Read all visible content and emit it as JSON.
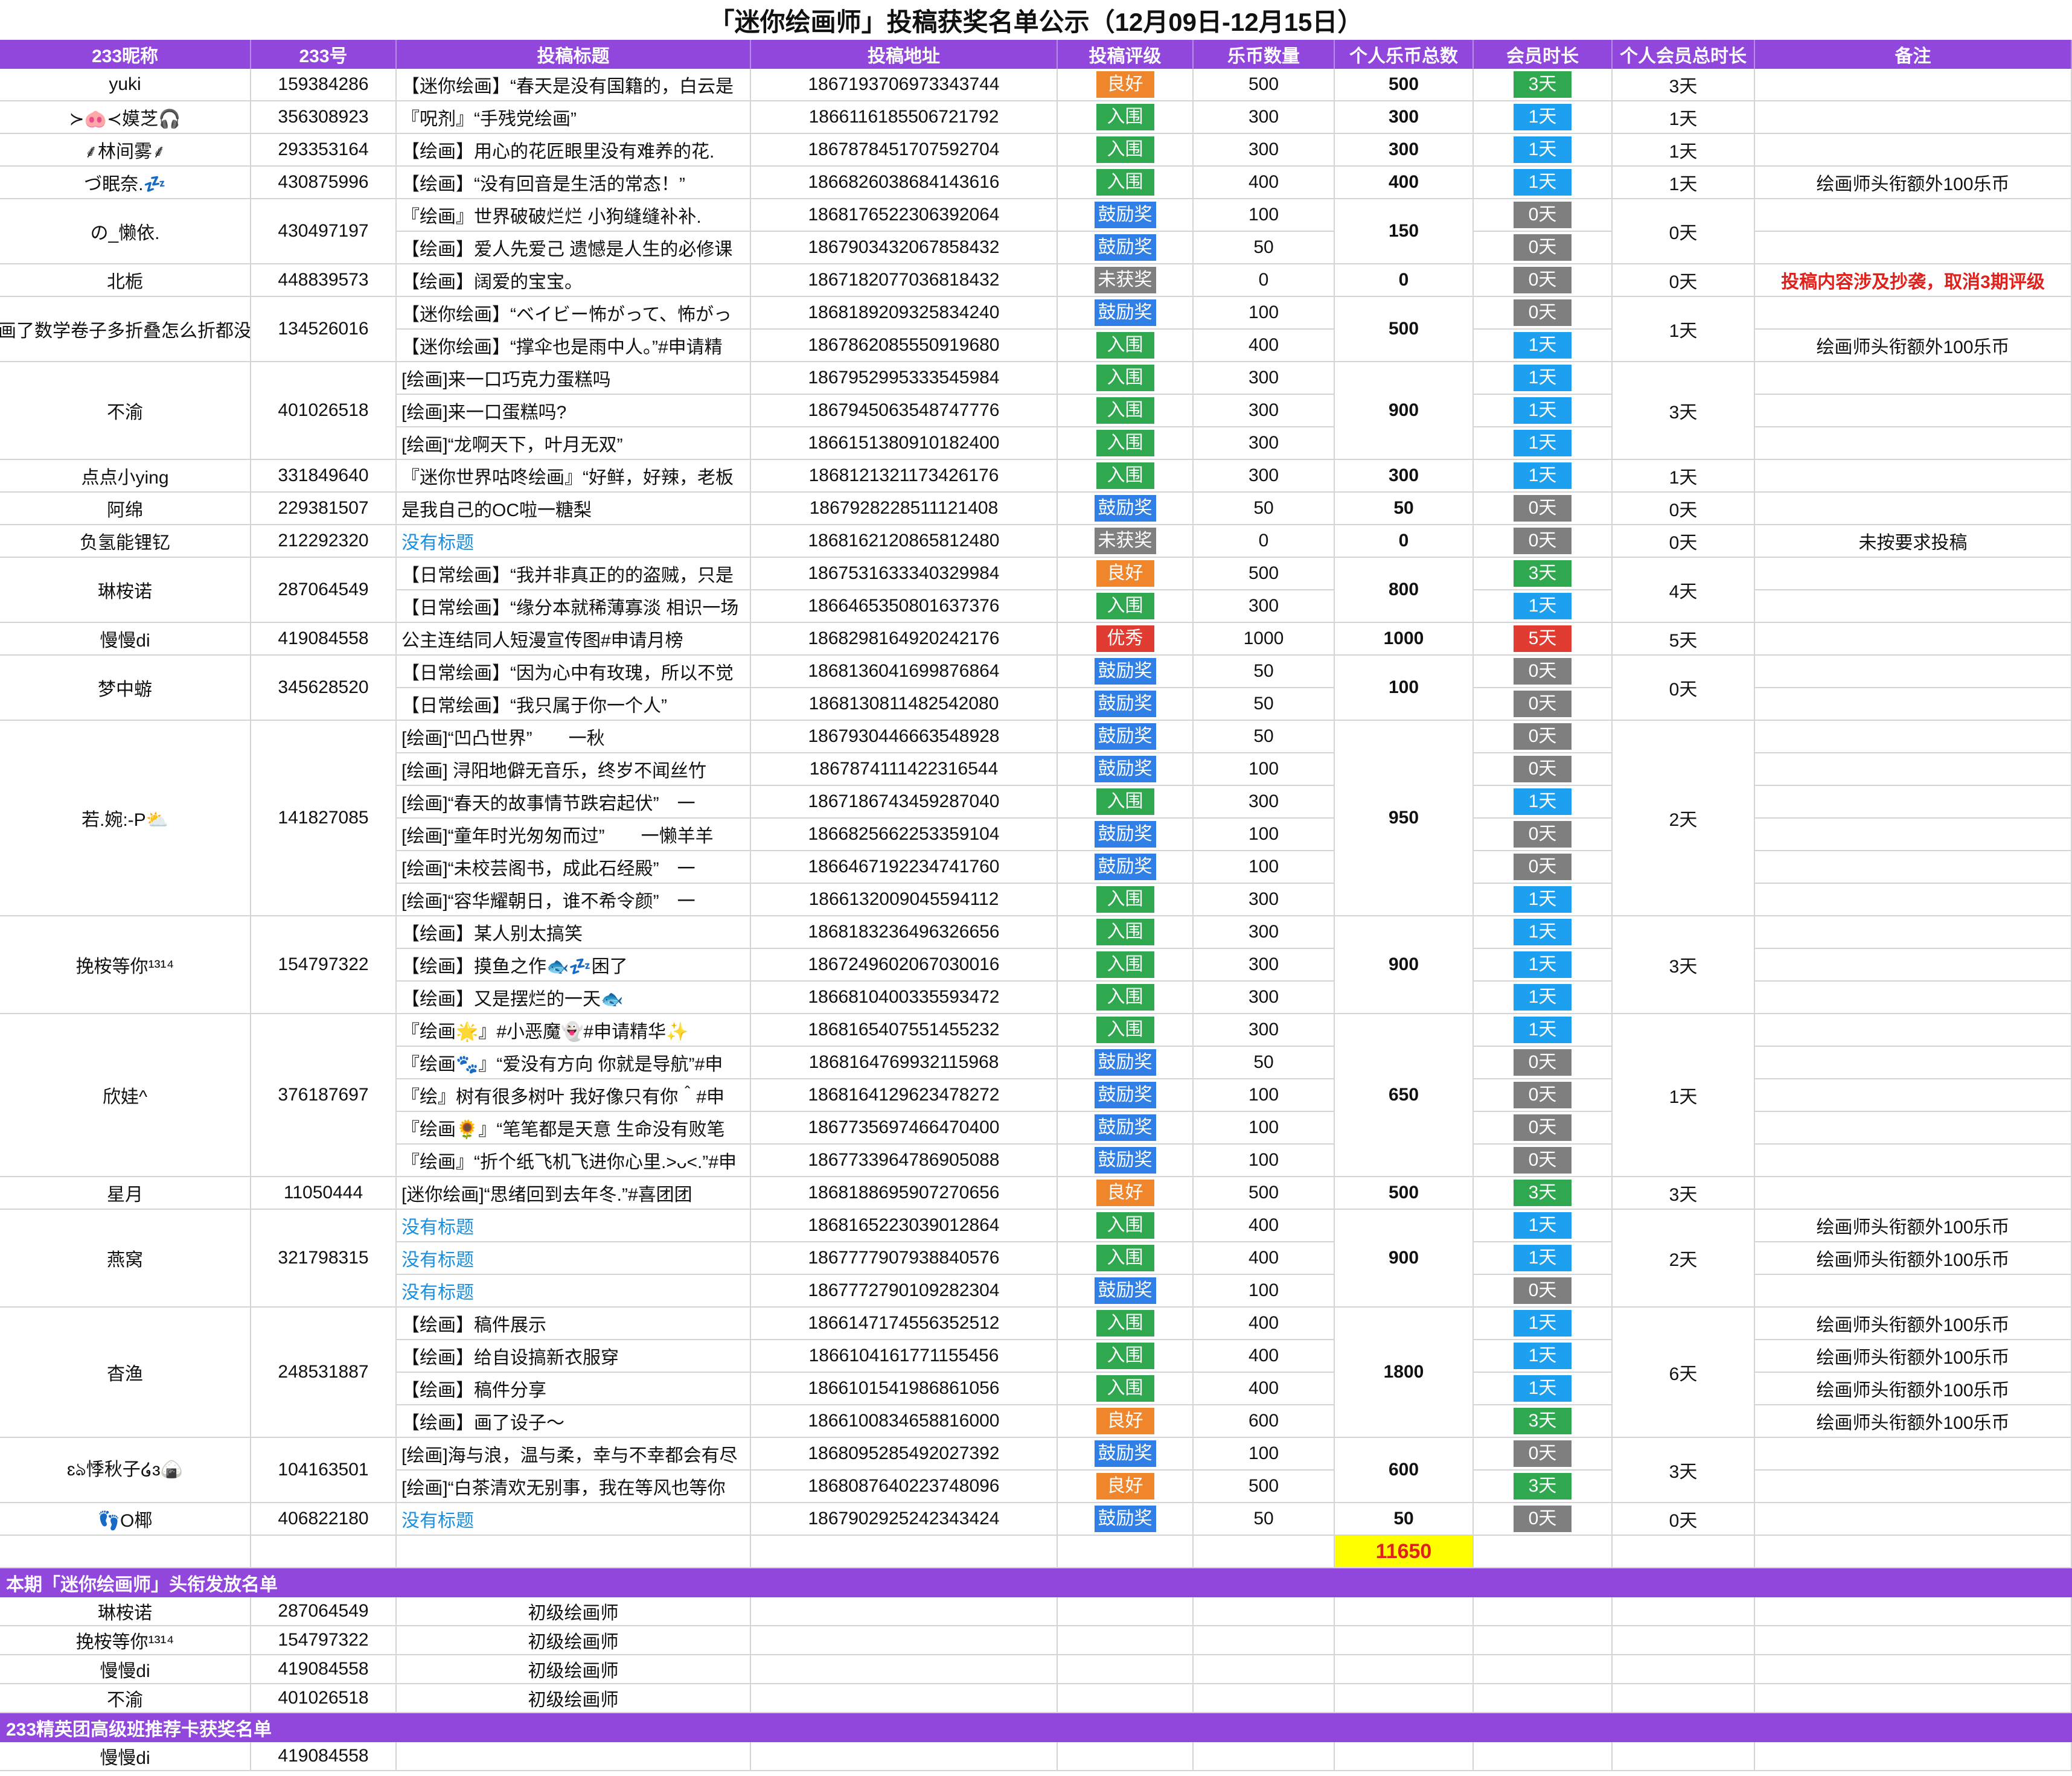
{
  "title": "「迷你绘画师」投稿获奖名单公示（12月09日-12月15日）",
  "headers": [
    "233昵称",
    "233号",
    "投稿标题",
    "投稿地址",
    "投稿评级",
    "乐币数量",
    "个人乐币总数",
    "会员时长",
    "个人会员总时长",
    "备注"
  ],
  "badge_colors": {
    "良好": "#f0862c",
    "入围": "#2fa84f",
    "鼓励奖": "#2f7fe6",
    "未获奖": "#808080",
    "优秀": "#e03c31",
    "3天": "#2fa84f",
    "1天": "#1ea0f0",
    "0天": "#7f7f7f",
    "5天": "#e03c31"
  },
  "groups": [
    {
      "nickname": "yuki",
      "uid": "159384286",
      "total": 500,
      "total_days": "3天",
      "entries": [
        {
          "title": "【迷你绘画】“春天是没有国籍的，白云是",
          "url": "1867193706973343744",
          "rating": "良好",
          "coins": 500,
          "days": "3天"
        }
      ]
    },
    {
      "nickname": "≻🐽≺嫫芝🎧",
      "uid": "356308923",
      "total": 300,
      "total_days": "1天",
      "entries": [
        {
          "title": "『呪剂』“手残党绘画”",
          "url": "1866116185506721792",
          "rating": "入围",
          "coins": 300,
          "days": "1天"
        }
      ]
    },
    {
      "nickname": "⸙林间雾⸙",
      "uid": "293353164",
      "total": 300,
      "total_days": "1天",
      "entries": [
        {
          "title": "【绘画】用心的花匠眼里没有难养的花.",
          "url": "1867878451707592704",
          "rating": "入围",
          "coins": 300,
          "days": "1天"
        }
      ]
    },
    {
      "nickname": "づ眠奈.💤",
      "uid": "430875996",
      "total": 400,
      "total_days": "1天",
      "entries": [
        {
          "title": "【绘画】“没有回音是生活的常态！”",
          "url": "1866826038684143616",
          "rating": "入围",
          "coins": 400,
          "days": "1天",
          "remark": "绘画师头衔额外100乐币"
        }
      ]
    },
    {
      "nickname": "の_懒依.",
      "uid": "430497197",
      "total": 150,
      "total_days": "0天",
      "entries": [
        {
          "title": "『绘画』世界破破烂烂 小狗缝缝补补.",
          "url": "1868176522306392064",
          "rating": "鼓励奖",
          "coins": 100,
          "days": "0天"
        },
        {
          "title": "【绘画】爱人先爱己 遗憾是人生的必修课",
          "url": "1867903432067858432",
          "rating": "鼓励奖",
          "coins": 50,
          "days": "0天"
        }
      ]
    },
    {
      "nickname": "北栀",
      "uid": "448839573",
      "total": 0,
      "total_days": "0天",
      "entries": [
        {
          "title": "【绘画】阔爱的宝宝。",
          "url": "1867182077036818432",
          "rating": "未获奖",
          "coins": 0,
          "days": "0天",
          "remark": "投稿内容涉及抄袭，取消3期评级",
          "remark_color": "#e0201a"
        }
      ]
    },
    {
      "nickname": "画了数学卷子多折叠怎么折都没",
      "uid": "134526016",
      "total": 500,
      "total_days": "1天",
      "entries": [
        {
          "title": "【迷你绘画】“ベイビー怖がって、怖がっ",
          "url": "1868189209325834240",
          "rating": "鼓励奖",
          "coins": 100,
          "days": "0天"
        },
        {
          "title": "【迷你绘画】“撑伞也是雨中人。”#申请精",
          "url": "1867862085550919680",
          "rating": "入围",
          "coins": 400,
          "days": "1天",
          "remark": "绘画师头衔额外100乐币"
        }
      ]
    },
    {
      "nickname": "不渝",
      "uid": "401026518",
      "total": 900,
      "total_days": "3天",
      "entries": [
        {
          "title": "[绘画]来一口巧克力蛋糕吗",
          "url": "1867952995333545984",
          "rating": "入围",
          "coins": 300,
          "days": "1天"
        },
        {
          "title": "[绘画]来一口蛋糕吗?",
          "url": "1867945063548747776",
          "rating": "入围",
          "coins": 300,
          "days": "1天"
        },
        {
          "title": "[绘画]“龙啊天下，叶月无双”",
          "url": "1866151380910182400",
          "rating": "入围",
          "coins": 300,
          "days": "1天"
        }
      ]
    },
    {
      "nickname": "点点小ying",
      "uid": "331849640",
      "total": 300,
      "total_days": "1天",
      "entries": [
        {
          "title": "『迷你世界咕咚绘画』“好鲜，好辣，老板",
          "url": "1868121321173426176",
          "rating": "入围",
          "coins": 300,
          "days": "1天"
        }
      ]
    },
    {
      "nickname": "阿绵",
      "uid": "229381507",
      "total": 50,
      "total_days": "0天",
      "entries": [
        {
          "title": "是我自己的OC啦一糖梨",
          "url": "1867928228511121408",
          "rating": "鼓励奖",
          "coins": 50,
          "days": "0天"
        }
      ]
    },
    {
      "nickname": "负氢能锂钇",
      "uid": "212292320",
      "total": 0,
      "total_days": "0天",
      "entries": [
        {
          "title": "没有标题",
          "link": true,
          "url": "1868162120865812480",
          "rating": "未获奖",
          "coins": 0,
          "days": "0天",
          "remark": "未按要求投稿"
        }
      ]
    },
    {
      "nickname": "琳桉诺",
      "uid": "287064549",
      "total": 800,
      "total_days": "4天",
      "entries": [
        {
          "title": "【日常绘画】“我并非真正的的盗贼，只是",
          "url": "1867531633340329984",
          "rating": "良好",
          "coins": 500,
          "days": "3天"
        },
        {
          "title": "【日常绘画】“缘分本就稀薄寡淡 相识一场",
          "url": "1866465350801637376",
          "rating": "入围",
          "coins": 300,
          "days": "1天"
        }
      ]
    },
    {
      "nickname": "慢慢di",
      "uid": "419084558",
      "total": 1000,
      "total_days": "5天",
      "entries": [
        {
          "title": "公主连结同人短漫宣传图#申请月榜",
          "url": "1868298164920242176",
          "rating": "优秀",
          "coins": 1000,
          "days": "5天"
        }
      ]
    },
    {
      "nickname": "梦中蝣",
      "uid": "345628520",
      "total": 100,
      "total_days": "0天",
      "entries": [
        {
          "title": "【日常绘画】“因为心中有玫瑰，所以不觉",
          "url": "1868136041699876864",
          "rating": "鼓励奖",
          "coins": 50,
          "days": "0天"
        },
        {
          "title": "【日常绘画】“我只属于你一个人”",
          "url": "1868130811482542080",
          "rating": "鼓励奖",
          "coins": 50,
          "days": "0天"
        }
      ]
    },
    {
      "nickname": "若.婉:-P⛅",
      "uid": "141827085",
      "total": 950,
      "total_days": "2天",
      "entries": [
        {
          "title": "[绘画]“凹凸世界”　　一秋",
          "url": "1867930446663548928",
          "rating": "鼓励奖",
          "coins": 50,
          "days": "0天"
        },
        {
          "title": "[绘画] 浔阳地僻无音乐，终岁不闻丝竹",
          "url": "1867874111422316544",
          "rating": "鼓励奖",
          "coins": 100,
          "days": "0天"
        },
        {
          "title": "[绘画]“春天的故事情节跌宕起伏”　一",
          "url": "1867186743459287040",
          "rating": "入围",
          "coins": 300,
          "days": "1天"
        },
        {
          "title": "[绘画]“童年时光匆匆而过”　　一懒羊羊",
          "url": "1866825662253359104",
          "rating": "鼓励奖",
          "coins": 100,
          "days": "0天"
        },
        {
          "title": "[绘画]“未校芸阁书，成此石经殿”　一",
          "url": "1866467192234741760",
          "rating": "鼓励奖",
          "coins": 100,
          "days": "0天"
        },
        {
          "title": "[绘画]“容华耀朝日，谁不希令颜”　一",
          "url": "1866132009045594112",
          "rating": "入围",
          "coins": 300,
          "days": "1天"
        }
      ]
    },
    {
      "nickname": "挽桉等你¹³¹⁴",
      "uid": "154797322",
      "total": 900,
      "total_days": "3天",
      "entries": [
        {
          "title": "【绘画】某人别太搞笑",
          "url": "1868183236496326656",
          "rating": "入围",
          "coins": 300,
          "days": "1天"
        },
        {
          "title": "【绘画】摸鱼之作🐟💤困了",
          "url": "1867249602067030016",
          "rating": "入围",
          "coins": 300,
          "days": "1天"
        },
        {
          "title": "【绘画】又是摆烂的一天🐟",
          "url": "1866810400335593472",
          "rating": "入围",
          "coins": 300,
          "days": "1天"
        }
      ]
    },
    {
      "nickname": "欣娃^",
      "uid": "376187697",
      "total": 650,
      "total_days": "1天",
      "entries": [
        {
          "title": "『绘画🌟』#小恶魔👻#申请精华✨",
          "url": "1868165407551455232",
          "rating": "入围",
          "coins": 300,
          "days": "1天"
        },
        {
          "title": "『绘画🐾』“爱没有方向 你就是导航”#申",
          "url": "1868164769932115968",
          "rating": "鼓励奖",
          "coins": 50,
          "days": "0天"
        },
        {
          "title": "『绘』树有很多树叶 我好像只有你＾#申",
          "url": "1868164129623478272",
          "rating": "鼓励奖",
          "coins": 100,
          "days": "0天"
        },
        {
          "title": "『绘画🌻』“笔笔都是天意 生命没有败笔",
          "url": "1867735697466470400",
          "rating": "鼓励奖",
          "coins": 100,
          "days": "0天"
        },
        {
          "title": "『绘画』“折个纸飞机飞进你心里.>ᴗ<.”#申",
          "url": "1867733964786905088",
          "rating": "鼓励奖",
          "coins": 100,
          "days": "0天"
        }
      ]
    },
    {
      "nickname": "星月",
      "uid": "11050444",
      "total": 500,
      "total_days": "3天",
      "entries": [
        {
          "title": "[迷你绘画]“思绪回到去年冬.”#喜团团",
          "url": "1868188695907270656",
          "rating": "良好",
          "coins": 500,
          "days": "3天"
        }
      ]
    },
    {
      "nickname": "燕窝",
      "uid": "321798315",
      "total": 900,
      "total_days": "2天",
      "entries": [
        {
          "title": "没有标题",
          "link": true,
          "url": "1868165223039012864",
          "rating": "入围",
          "coins": 400,
          "days": "1天",
          "remark": "绘画师头衔额外100乐币"
        },
        {
          "title": "没有标题",
          "link": true,
          "url": "1867777907938840576",
          "rating": "入围",
          "coins": 400,
          "days": "1天",
          "remark": "绘画师头衔额外100乐币"
        },
        {
          "title": "没有标题",
          "link": true,
          "url": "1867772790109282304",
          "rating": "鼓励奖",
          "coins": 100,
          "days": "0天"
        }
      ]
    },
    {
      "nickname": "杳渔",
      "uid": "248531887",
      "total": 1800,
      "total_days": "6天",
      "entries": [
        {
          "title": "【绘画】稿件展示",
          "url": "1866147174556352512",
          "rating": "入围",
          "coins": 400,
          "days": "1天",
          "remark": "绘画师头衔额外100乐币"
        },
        {
          "title": "【绘画】给自设搞新衣服穿",
          "url": "1866104161771155456",
          "rating": "入围",
          "coins": 400,
          "days": "1天",
          "remark": "绘画师头衔额外100乐币"
        },
        {
          "title": "【绘画】稿件分享",
          "url": "1866101541986861056",
          "rating": "入围",
          "coins": 400,
          "days": "1天",
          "remark": "绘画师头衔额外100乐币"
        },
        {
          "title": "【绘画】画了设子～",
          "url": "1866100834658816000",
          "rating": "良好",
          "coins": 600,
          "days": "3天",
          "remark": "绘画师头衔额外100乐币"
        }
      ]
    },
    {
      "nickname": "ɛঌ悸秋子໒ɜ🍙",
      "uid": "104163501",
      "total": 600,
      "total_days": "3天",
      "entries": [
        {
          "title": "[绘画]海与浪，温与柔，幸与不幸都会有尽",
          "url": "1868095285492027392",
          "rating": "鼓励奖",
          "coins": 100,
          "days": "0天"
        },
        {
          "title": "[绘画]“白茶清欢无别事，我在等风也等你",
          "url": "1868087640223748096",
          "rating": "良好",
          "coins": 500,
          "days": "3天"
        }
      ]
    },
    {
      "nickname": "👣O椰",
      "uid": "406822180",
      "total": 50,
      "total_days": "0天",
      "entries": [
        {
          "title": "没有标题",
          "link": true,
          "url": "1867902925242343424",
          "rating": "鼓励奖",
          "coins": 50,
          "days": "0天"
        }
      ]
    }
  ],
  "grand_total": 11650,
  "sections": [
    {
      "title": "本期「迷你绘画师」头衔发放名单",
      "rows": [
        [
          "琳桉诺",
          "287064549",
          "初级绘画师"
        ],
        [
          "挽桉等你¹³¹⁴",
          "154797322",
          "初级绘画师"
        ],
        [
          "慢慢di",
          "419084558",
          "初级绘画师"
        ],
        [
          "不渝",
          "401026518",
          "初级绘画师"
        ]
      ]
    },
    {
      "title": "233精英团高级班推荐卡获奖名单",
      "rows": [
        [
          "慢慢di",
          "419084558"
        ]
      ]
    }
  ]
}
